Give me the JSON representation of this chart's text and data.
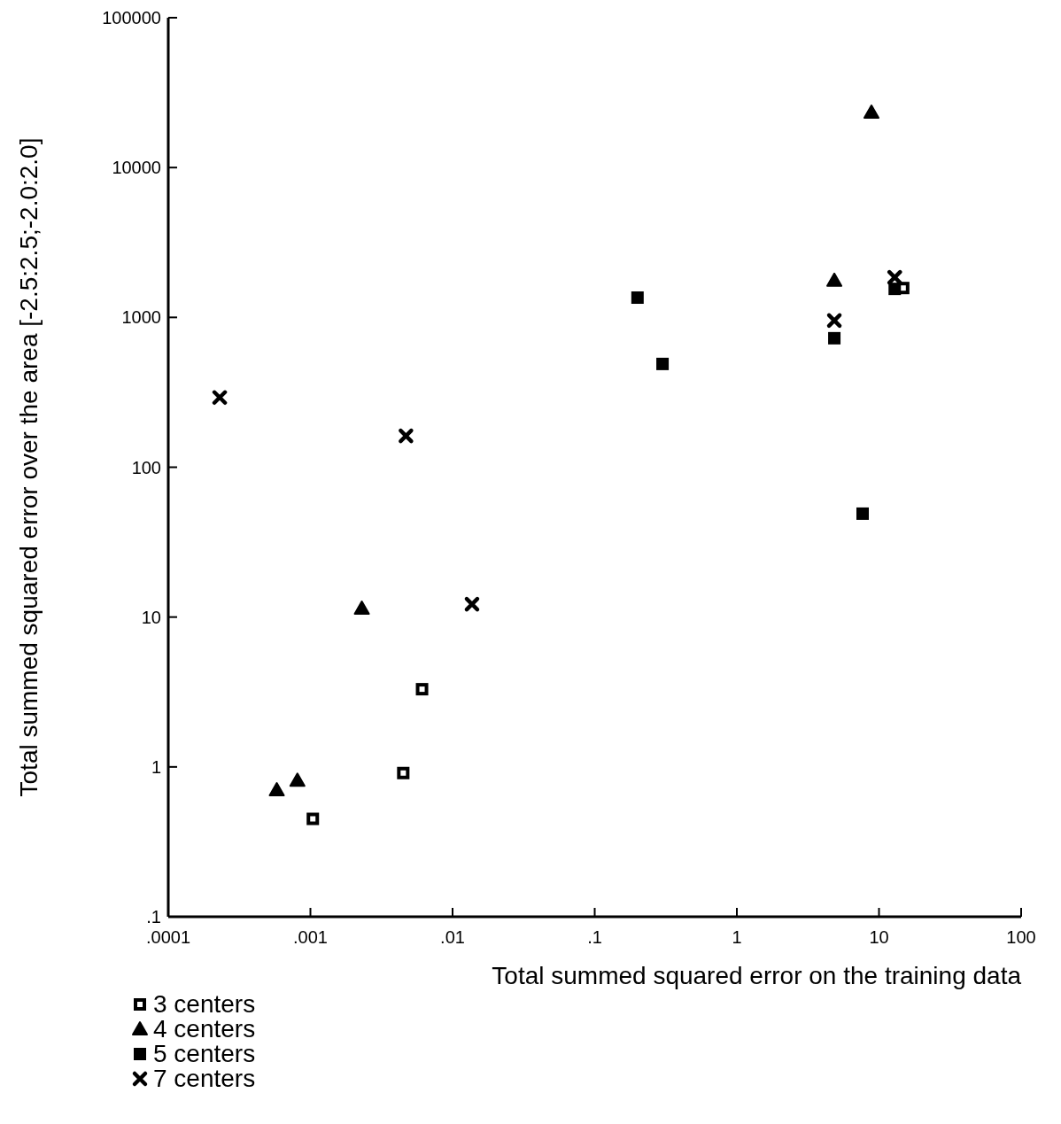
{
  "chart_data": {
    "type": "scatter",
    "xlabel": "Total summed squared error on the training data",
    "ylabel": "Total summed squared error over the area [-2.5:2.5;-2.0:2.0]",
    "log": "xy",
    "xlim": [
      0.0001,
      100
    ],
    "ylim": [
      0.1,
      100000
    ],
    "xticks": [
      {
        "value": 0.0001,
        "label": ".0001"
      },
      {
        "value": 0.001,
        "label": ".001"
      },
      {
        "value": 0.01,
        "label": ".01"
      },
      {
        "value": 0.1,
        "label": ".1"
      },
      1,
      10,
      100
    ],
    "yticks": [
      {
        "value": 0.1,
        "label": ".1"
      },
      1,
      10,
      100,
      1000,
      10000,
      100000
    ],
    "legend": "bottom left",
    "grid": false,
    "series": [
      {
        "name": "3  centers",
        "color": "#000000",
        "marker": "square",
        "x": [
          0.00104,
          0.0045,
          0.0061,
          14.8
        ],
        "values": [
          0.45,
          0.91,
          3.3,
          1570
        ]
      },
      {
        "name": "4  centers",
        "color": "#000000",
        "marker": "triangle",
        "x": [
          0.00058,
          0.00081,
          0.0023,
          4.85,
          8.85
        ],
        "values": [
          0.7,
          0.81,
          11.4,
          1760,
          23300
        ]
      },
      {
        "name": "5  centers",
        "color": "#000000",
        "marker": "square",
        "x": [
          0.2,
          0.3,
          4.85,
          7.67,
          12.9
        ],
        "values": [
          1355,
          489,
          726,
          49,
          1550
        ]
      },
      {
        "name": "7  centers",
        "color": "#000000",
        "marker": "cross",
        "x": [
          0.00023,
          0.0047,
          0.0137,
          4.85,
          12.9
        ],
        "values": [
          292,
          162,
          12.2,
          953,
          1850
        ]
      }
    ]
  }
}
